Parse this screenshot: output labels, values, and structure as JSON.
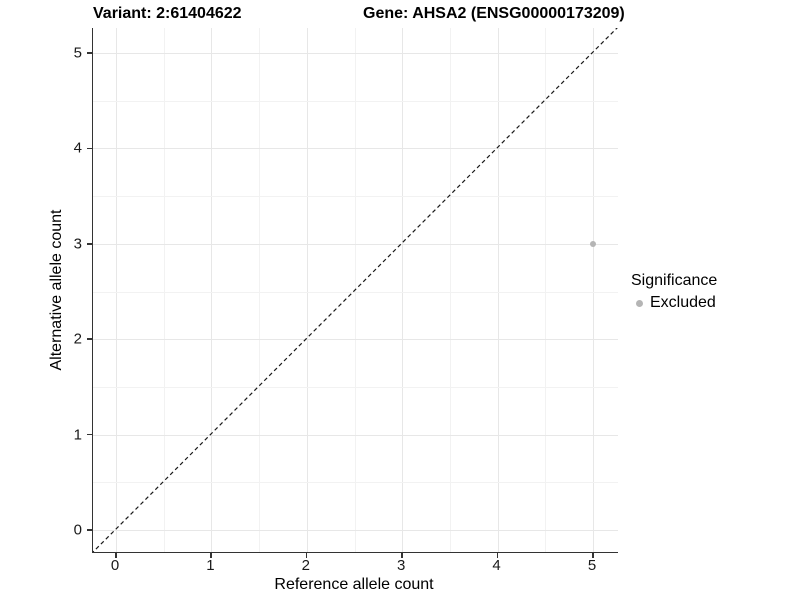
{
  "chart_data": {
    "type": "scatter",
    "title_left": "Variant: 2:61404622",
    "title_right": "Gene: AHSA2 (ENSG00000173209)",
    "xlabel": "Reference allele count",
    "ylabel": "Alternative allele count",
    "xlim": [
      -0.25,
      5.27
    ],
    "ylim": [
      -0.25,
      5.27
    ],
    "x_ticks": [
      0,
      1,
      2,
      3,
      4,
      5
    ],
    "y_ticks": [
      0,
      1,
      2,
      3,
      4,
      5
    ],
    "grid": "major-and-minor",
    "points": [
      {
        "x": 5,
        "y": 3,
        "series": "Excluded"
      }
    ],
    "reference_line": {
      "style": "dashed",
      "slope": 1,
      "intercept": 0
    },
    "legend": {
      "position": "right",
      "title": "Significance",
      "items": [
        {
          "label": "Excluded",
          "color": "#b5b5b5"
        }
      ]
    },
    "colors": {
      "point": "#b5b5b5",
      "grid_major": "#e7e7e7",
      "grid_minor": "#f2f2f2",
      "axis_line": "#333333",
      "text": "#000000",
      "reference_line": "#1a1a1a",
      "background": "#ffffff"
    }
  }
}
